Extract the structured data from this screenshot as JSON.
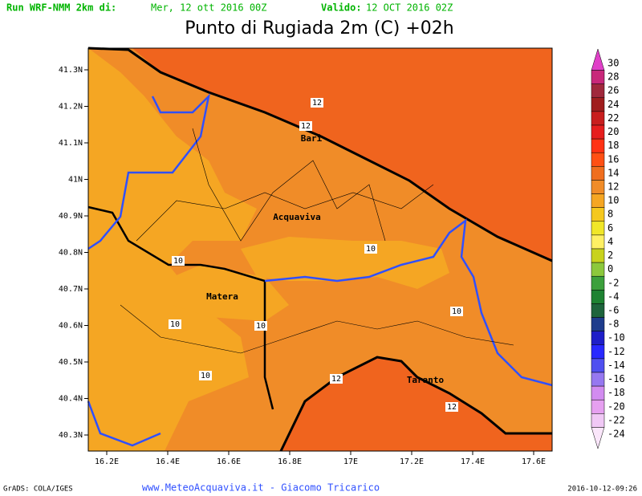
{
  "header": {
    "run_label": "Run WRF-NMM 2km di:",
    "run_date": "Mer, 12 ott 2016 00Z",
    "valid_label": "Valido:",
    "valid_date": "12 OCT 2016 02Z"
  },
  "title": "Punto di Rugiada 2m (C) +02h",
  "map": {
    "lat_labels": [
      "41.3N",
      "41.2N",
      "41.1N",
      "41N",
      "40.9N",
      "40.8N",
      "40.7N",
      "40.6N",
      "40.5N",
      "40.4N",
      "40.3N"
    ],
    "lon_labels": [
      "16.2E",
      "16.4E",
      "16.6E",
      "16.8E",
      "17E",
      "17.2E",
      "17.4E",
      "17.6E"
    ],
    "cities": [
      "Bari",
      "Acquaviva",
      "Matera",
      "Taranto"
    ],
    "contour_labels": [
      "12",
      "12",
      "10",
      "10",
      "10",
      "10",
      "10",
      "10",
      "12",
      "12"
    ]
  },
  "colorbar": {
    "levels": [
      30,
      28,
      26,
      24,
      22,
      20,
      18,
      16,
      14,
      12,
      10,
      8,
      6,
      4,
      2,
      0,
      -2,
      -4,
      -6,
      -8,
      -10,
      -12,
      -14,
      -16,
      -18,
      -20,
      -22,
      -24
    ],
    "colors": [
      "#e040c8",
      "#c8287a",
      "#a0283c",
      "#a01e1e",
      "#c81e1e",
      "#e61e1e",
      "#ff3214",
      "#ff5014",
      "#f06e1e",
      "#f08c28",
      "#f5a623",
      "#f5c81e",
      "#f0e628",
      "#fff064",
      "#c8d21e",
      "#8cc83c",
      "#3ca03c",
      "#1e8232",
      "#1e643c",
      "#1e3c8c",
      "#1e1ec8",
      "#2828ff",
      "#5050f0",
      "#9678f0",
      "#d28cf0",
      "#e6a0f0",
      "#f0c8f5",
      "#fae6fa"
    ]
  },
  "footer": {
    "left": "GrADS: COLA/IGES",
    "center": "www.MeteoAcquaviva.it - Giacomo Tricarico",
    "right": "2016-10-12-09:26"
  }
}
